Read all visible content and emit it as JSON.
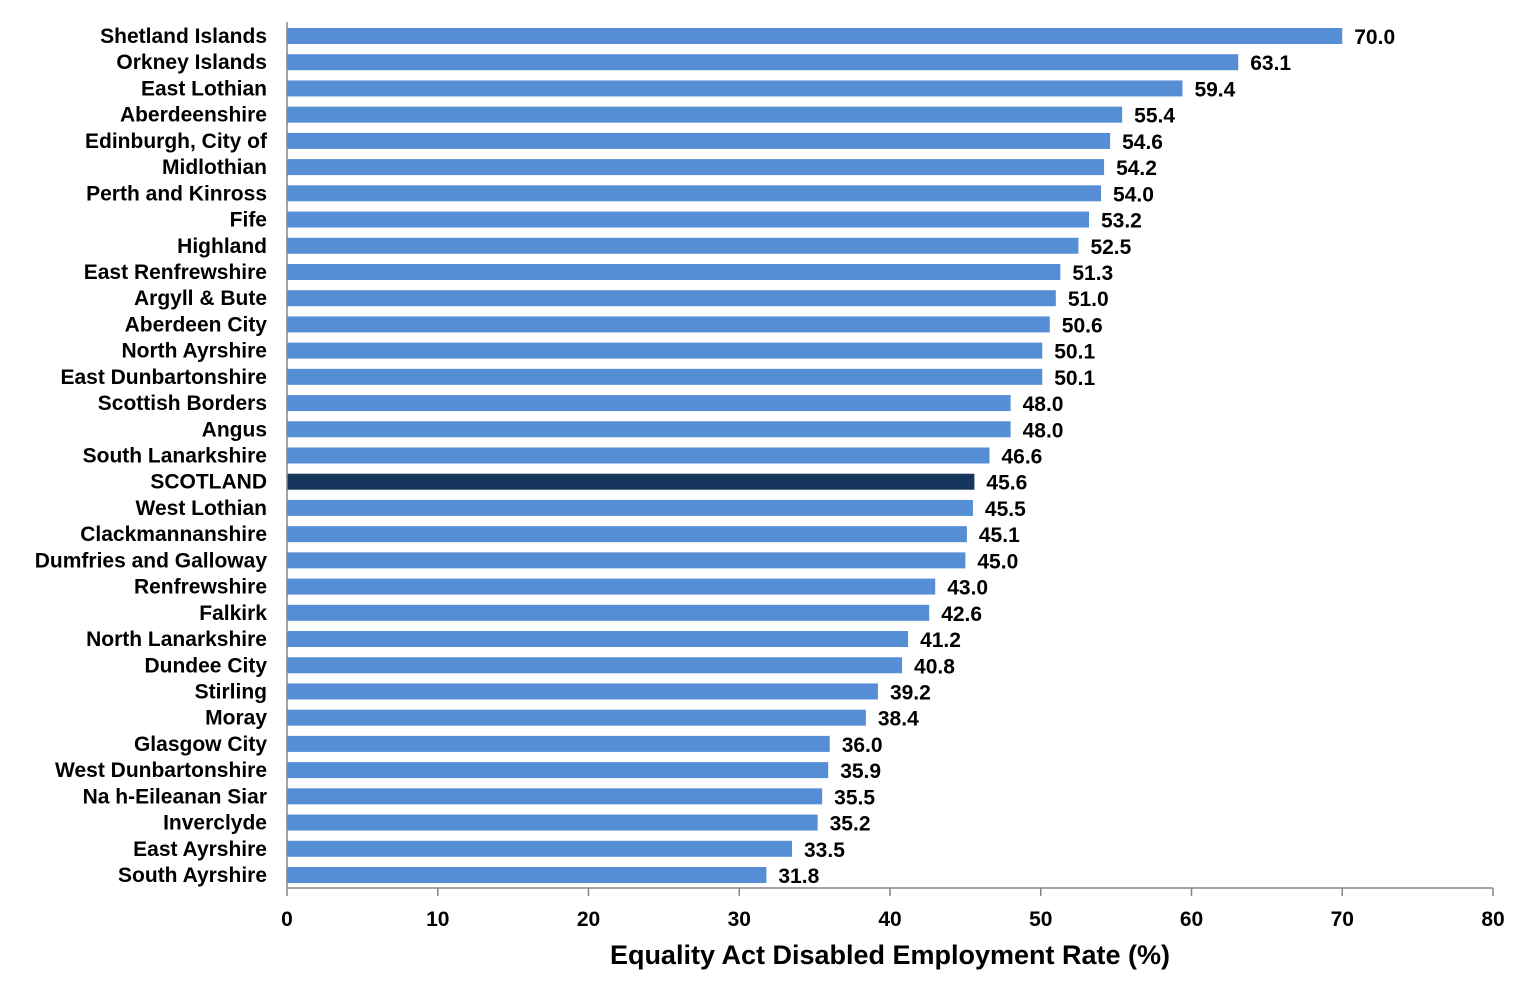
{
  "chart_data": {
    "type": "bar",
    "orientation": "horizontal",
    "title": "",
    "xlabel": "Equality Act Disabled Employment Rate (%)",
    "ylabel": "",
    "xlim": [
      0,
      80
    ],
    "x_ticks": [
      "0",
      "10",
      "20",
      "30",
      "40",
      "50",
      "60",
      "70",
      "80"
    ],
    "grid": false,
    "legend": "none",
    "bar_color": "#558ED5",
    "highlight_color": "#17365D",
    "highlight_category": "SCOTLAND",
    "categories": [
      "Shetland Islands",
      "Orkney Islands",
      "East Lothian",
      "Aberdeenshire",
      "Edinburgh, City of",
      "Midlothian",
      "Perth and Kinross",
      "Fife",
      "Highland",
      "East Renfrewshire",
      "Argyll & Bute",
      "Aberdeen City",
      "North Ayrshire",
      "East Dunbartonshire",
      "Scottish Borders",
      "Angus",
      "South Lanarkshire",
      "SCOTLAND",
      "West Lothian",
      "Clackmannanshire",
      "Dumfries and Galloway",
      "Renfrewshire",
      "Falkirk",
      "North Lanarkshire",
      "Dundee City",
      "Stirling",
      "Moray",
      "Glasgow City",
      "West Dunbartonshire",
      "Na h-Eileanan Siar",
      "Inverclyde",
      "East Ayrshire",
      "South Ayrshire"
    ],
    "values": [
      70.0,
      63.1,
      59.4,
      55.4,
      54.6,
      54.2,
      54.0,
      53.2,
      52.5,
      51.3,
      51.0,
      50.6,
      50.1,
      50.1,
      48.0,
      48.0,
      46.6,
      45.6,
      45.5,
      45.1,
      45.0,
      43.0,
      42.6,
      41.2,
      40.8,
      39.2,
      38.4,
      36.0,
      35.9,
      35.5,
      35.2,
      33.5,
      31.8
    ],
    "value_labels": [
      "70.0",
      "63.1",
      "59.4",
      "55.4",
      "54.6",
      "54.2",
      "54.0",
      "53.2",
      "52.5",
      "51.3",
      "51.0",
      "50.6",
      "50.1",
      "50.1",
      "48.0",
      "48.0",
      "46.6",
      "45.6",
      "45.5",
      "45.1",
      "45.0",
      "43.0",
      "42.6",
      "41.2",
      "40.8",
      "39.2",
      "38.4",
      "36.0",
      "35.9",
      "35.5",
      "35.2",
      "33.5",
      "31.8"
    ]
  }
}
